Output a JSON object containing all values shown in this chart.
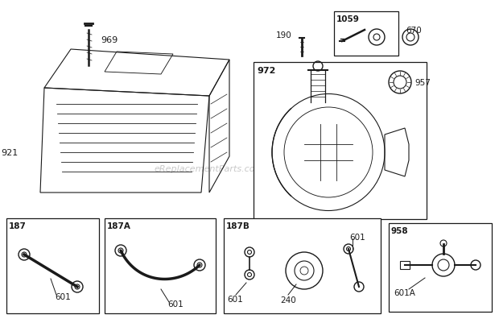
{
  "bg_color": "#ffffff",
  "watermark": "eReplacementParts.com",
  "dark": "#1a1a1a",
  "lw": 0.8,
  "layout": {
    "cover_label": "921",
    "screw_label": "969",
    "tank_box_label": "972",
    "cap_label": "957",
    "kit_label": "1059",
    "p190": "190",
    "p670": "670",
    "b187": "187",
    "b187a": "187A",
    "b187b": "187B",
    "b958": "958",
    "p601": "601",
    "p601a": "601A",
    "p240": "240"
  }
}
